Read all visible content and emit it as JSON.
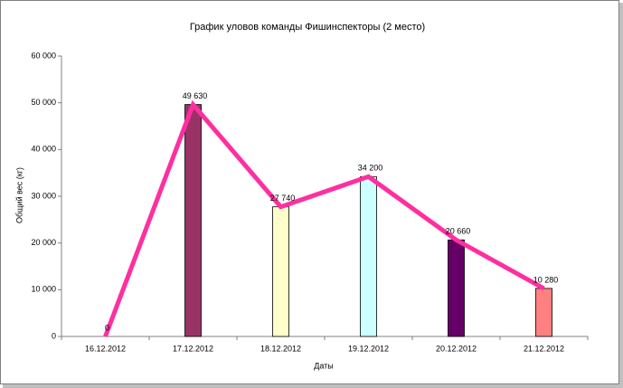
{
  "chart_data": {
    "type": "bar",
    "title": "График уловов команды Фишинспекторы (2 место)",
    "x_label": "Даты",
    "y_label": "Общий вес (кг)",
    "categories": [
      "16.12.2012",
      "17.12.2012",
      "18.12.2012",
      "19.12.2012",
      "20.12.2012",
      "21.12.2012"
    ],
    "values": [
      0,
      49630,
      27740,
      34200,
      20660,
      10280
    ],
    "value_labels": [
      "0",
      "49 630",
      "27 740",
      "34 200",
      "20 660",
      "10 280"
    ],
    "bar_colors": [
      "#9999ff",
      "#993366",
      "#ffffcc",
      "#ccffff",
      "#660066",
      "#ff8080"
    ],
    "overlay": "line",
    "line_color": "#ff2fa0",
    "ylim": [
      0,
      60000
    ],
    "yticks": [
      0,
      {
        "value": 10000,
        "label": "10 000"
      },
      {
        "value": 20000,
        "label": "20 000"
      },
      {
        "value": 30000,
        "label": "30 000"
      },
      {
        "value": 40000,
        "label": "40 000"
      },
      {
        "value": 50000,
        "label": "50 000"
      },
      {
        "value": 60000,
        "label": "60 000"
      }
    ],
    "grid": false
  }
}
